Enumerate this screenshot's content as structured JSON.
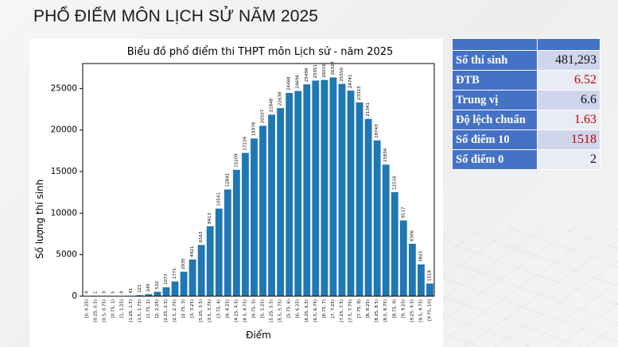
{
  "page": {
    "title": "PHỔ ĐIỂM MÔN LỊCH SỬ NĂM 2025"
  },
  "stats": {
    "rows": [
      {
        "label": "Số thí sinh",
        "value": "481,293",
        "highlight": false
      },
      {
        "label": "ĐTB",
        "value": "6.52",
        "highlight": true
      },
      {
        "label": "Trung vị",
        "value": "6.6",
        "highlight": false
      },
      {
        "label": "Độ lệch chuẩn",
        "value": "1.63",
        "highlight": true
      },
      {
        "label": "Số điểm 10",
        "value": "1518",
        "highlight": true
      },
      {
        "label": "Số điểm 0",
        "value": "2",
        "highlight": false
      }
    ]
  },
  "colors": {
    "bar": "#1f77b4",
    "table_header": "#4472c4",
    "table_row_odd": "#cfd5ea",
    "table_row_even": "#e9ebf5",
    "highlight_text": "#c00000"
  },
  "chart_data": {
    "type": "bar",
    "title": "Biểu đồ phổ điểm thi THPT môn Lịch sử - năm 2025",
    "xlabel": "Điểm",
    "ylabel": "Số lượng thí sinh",
    "ylim": [
      0,
      28000
    ],
    "yticks": [
      0,
      5000,
      10000,
      15000,
      20000,
      25000
    ],
    "grid": false,
    "categories": [
      "[0, 0.25)",
      "[0.25, 0.5)",
      "[0.5, 0.75)",
      "[0.75, 1)",
      "[1, 1.25)",
      "[1.25, 1.5)",
      "[1.5, 1.75)",
      "[1.75, 2)",
      "[2, 2.25)",
      "[2.25, 2.5)",
      "[2.5, 2.75)",
      "[2.75, 3)",
      "[3, 3.25)",
      "[3.25, 3.5)",
      "[3.5, 3.75)",
      "[3.75, 4)",
      "[4, 4.25)",
      "[4.25, 4.5)",
      "[4.5, 4.75)",
      "[4.75, 5)",
      "[5, 5.25)",
      "[5.25, 5.5)",
      "[5.5, 5.75)",
      "[5.75, 6)",
      "[6, 6.25)",
      "[6.25, 6.5)",
      "[6.5, 6.75)",
      "[6.75, 7)",
      "[7, 7.25)",
      "[7.25, 7.5)",
      "[7.5, 7.75)",
      "[7.75, 8)",
      "[8, 8.25)",
      "[8.25, 8.5)",
      "[8.5, 8.75)",
      "[8.75, 9)",
      "[9, 9.25)",
      "[9.25, 9.5)",
      "[9.5, 9.75)",
      "[9.75, 10]"
    ],
    "values": [
      4,
      1,
      3,
      5,
      9,
      41,
      121,
      245,
      532,
      1077,
      1771,
      2935,
      4421,
      6163,
      8413,
      10541,
      12842,
      15209,
      17239,
      18978,
      20507,
      21848,
      22638,
      24468,
      24696,
      25498,
      25951,
      26016,
      26327,
      25550,
      24741,
      23323,
      21341,
      18743,
      15834,
      12516,
      9117,
      6306,
      3825,
      1518
    ]
  }
}
